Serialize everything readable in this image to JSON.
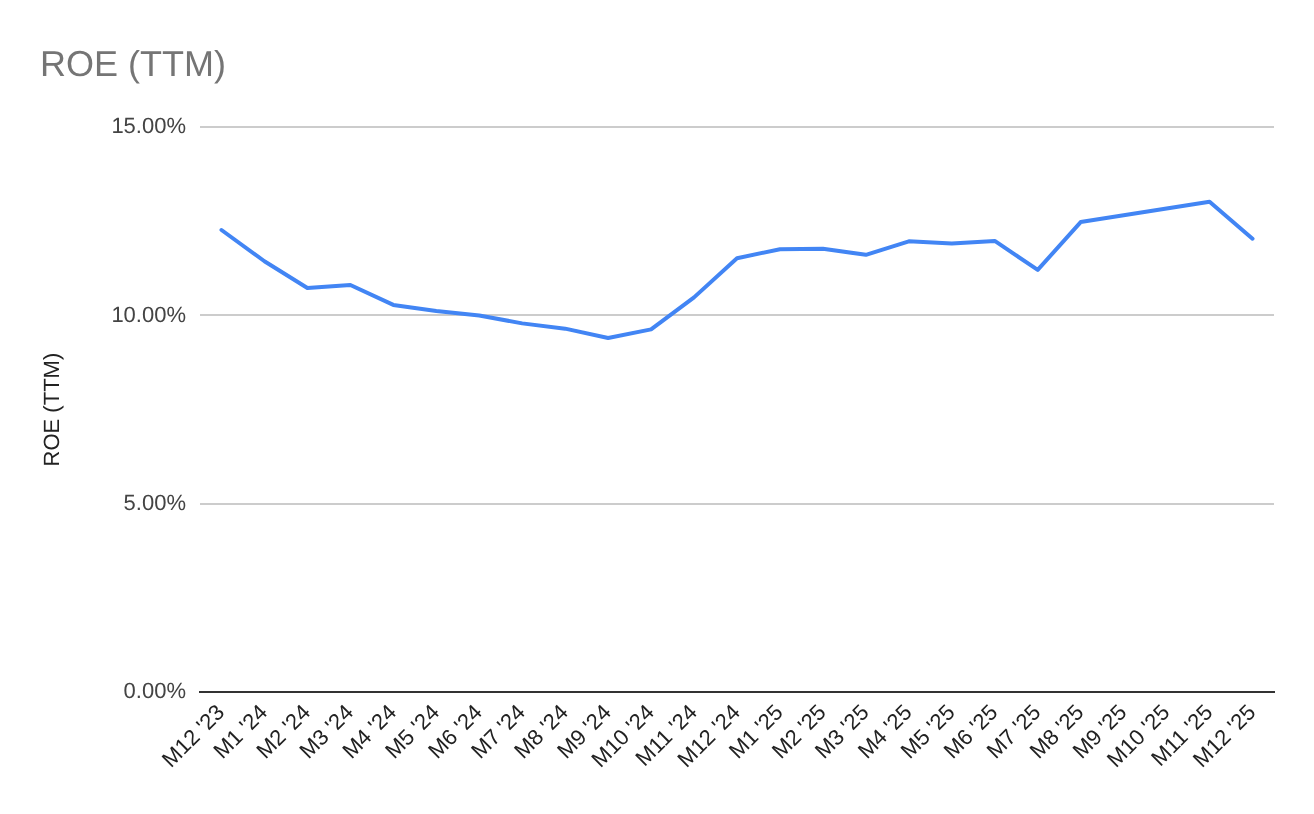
{
  "chart_data": {
    "type": "line",
    "title": "ROE (TTM)",
    "ylabel": "ROE (TTM)",
    "categories": [
      "M12 '23",
      "M1 '24",
      "M2 '24",
      "M3 '24",
      "M4 '24",
      "M5 '24",
      "M6 '24",
      "M7 '24",
      "M8 '24",
      "M9 '24",
      "M10 '24",
      "M11 '24",
      "M12 '24",
      "M1 '25",
      "M2 '25",
      "M3 '25",
      "M4 '25",
      "M5 '25",
      "M6 '25",
      "M7 '25",
      "M8 '25",
      "M9 '25",
      "M10 '25",
      "M11 '25",
      "M12 '25"
    ],
    "series": [
      {
        "color": "#4285f4",
        "values": [
          12.27,
          11.44,
          10.73,
          10.81,
          10.28,
          10.12,
          10.0,
          9.79,
          9.65,
          9.4,
          9.63,
          10.48,
          11.52,
          11.76,
          11.77,
          11.61,
          11.97,
          11.91,
          11.98,
          11.21,
          12.48,
          12.66,
          12.84,
          13.02,
          12.04
        ]
      }
    ],
    "ylim": [
      0,
      15
    ],
    "yticks": [
      {
        "value": 0,
        "label": "0.00%"
      },
      {
        "value": 5,
        "label": "5.00%"
      },
      {
        "value": 10,
        "label": "10.00%"
      },
      {
        "value": 15,
        "label": "15.00%"
      }
    ],
    "grid": "y",
    "legend": false,
    "marker": "none",
    "line_style": "solid"
  }
}
